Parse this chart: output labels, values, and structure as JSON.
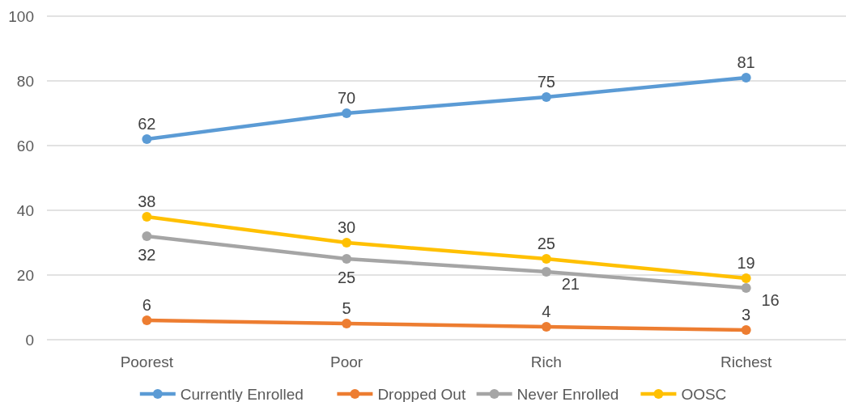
{
  "chart_data": {
    "type": "line",
    "categories": [
      "Poorest",
      "Poor",
      "Rich",
      "Richest"
    ],
    "series": [
      {
        "name": "Currently Enrolled",
        "color": "#5b9bd5",
        "values": [
          62,
          70,
          75,
          81
        ]
      },
      {
        "name": "Dropped Out",
        "color": "#ed7d31",
        "values": [
          6,
          5,
          4,
          3
        ]
      },
      {
        "name": "Never Enrolled",
        "color": "#a5a5a5",
        "values": [
          32,
          25,
          21,
          16
        ]
      },
      {
        "name": "OOSC",
        "color": "#ffc000",
        "values": [
          38,
          30,
          25,
          19
        ]
      }
    ],
    "ylim": [
      0,
      100
    ],
    "yticks": [
      0,
      20,
      40,
      60,
      80,
      100
    ],
    "grid": "y",
    "legend": "bottom",
    "marker": "circle",
    "line_style": "solid",
    "data_labels": true
  }
}
